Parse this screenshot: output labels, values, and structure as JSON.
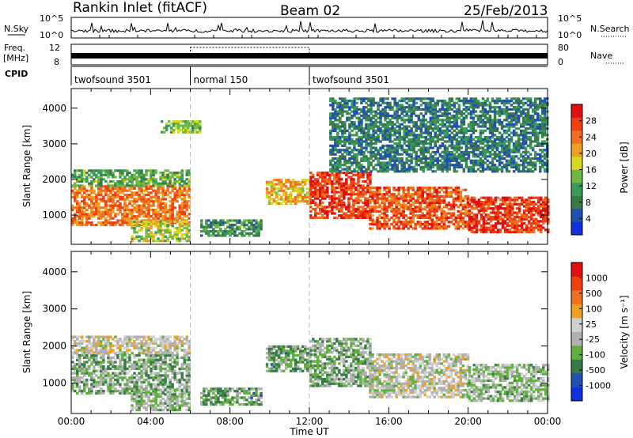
{
  "header": {
    "title": "Rankin Inlet (fitACF)",
    "beam": "Beam 02",
    "date": "25/Feb/2013"
  },
  "side_labels": {
    "nsky": "N.Sky",
    "freq_line1": "Freq.",
    "freq_line2": "[MHz]",
    "cpid": "CPID",
    "nsearch": "N.Search",
    "nave": "Nave"
  },
  "noise_axis": {
    "left_ticks": [
      "10^5",
      "10^0"
    ],
    "right_ticks": [
      "10^5",
      "10^0"
    ]
  },
  "freq_axis": {
    "left_ticks": [
      "12",
      "8"
    ],
    "right_ticks": [
      "80",
      "0"
    ]
  },
  "cpid_segments": [
    {
      "label": "twofsound 3501",
      "start_h": 0,
      "end_h": 6
    },
    {
      "label": "normal 150",
      "start_h": 6,
      "end_h": 12
    },
    {
      "label": "twofsound 3501",
      "start_h": 12,
      "end_h": 24
    }
  ],
  "colors": {
    "power_scale": [
      "#1030e0",
      "#2050b0",
      "#3a7a4a",
      "#3a9a5a",
      "#70b840",
      "#d8d820",
      "#f0a020",
      "#f07020",
      "#f04010",
      "#e01010"
    ],
    "velocity_scale": [
      "#1030e0",
      "#2050b0",
      "#3a7a4a",
      "#60b040",
      "#b0b0b0",
      "#d0d0d0",
      "#f0a020",
      "#f07020",
      "#f04010",
      "#e01010"
    ]
  },
  "chart_data": [
    {
      "type": "heatmap",
      "name": "power",
      "xlabel": "Time UT",
      "ylabel": "Slant Range [km]",
      "xlim": [
        0,
        24
      ],
      "ylim": [
        180,
        4550
      ],
      "x_ticks": [
        "00:00",
        "04:00",
        "08:00",
        "12:00",
        "16:00",
        "20:00",
        "00:00"
      ],
      "y_ticks": [
        "1000",
        "2000",
        "3000",
        "4000"
      ],
      "colorbar_label": "Power [dB]",
      "colorbar_ticks": [
        "28",
        "24",
        "20",
        "16",
        "12",
        "8",
        "4"
      ],
      "colorbar_range": [
        0,
        32
      ],
      "regions": [
        {
          "t": [
            0,
            6
          ],
          "r": [
            700,
            1800
          ],
          "value": 24
        },
        {
          "t": [
            0,
            6
          ],
          "r": [
            1800,
            2250
          ],
          "value": 12
        },
        {
          "t": [
            3,
            6
          ],
          "r": [
            250,
            800
          ],
          "value": 16
        },
        {
          "t": [
            4.5,
            6.5
          ],
          "r": [
            3300,
            3650
          ],
          "value": 14
        },
        {
          "t": [
            6.5,
            9.5
          ],
          "r": [
            400,
            850
          ],
          "value": 10
        },
        {
          "t": [
            9.8,
            12
          ],
          "r": [
            1300,
            2000
          ],
          "value": 20
        },
        {
          "t": [
            12,
            15
          ],
          "r": [
            900,
            2200
          ],
          "value": 28
        },
        {
          "t": [
            15,
            20
          ],
          "r": [
            600,
            1800
          ],
          "value": 26
        },
        {
          "t": [
            20,
            24
          ],
          "r": [
            500,
            1500
          ],
          "value": 28
        },
        {
          "t": [
            13,
            24
          ],
          "r": [
            2200,
            4300
          ],
          "value": 8
        }
      ]
    },
    {
      "type": "heatmap",
      "name": "velocity",
      "xlabel": "Time UT",
      "ylabel": "Slant Range [km]",
      "xlim": [
        0,
        24
      ],
      "ylim": [
        180,
        4550
      ],
      "x_ticks": [
        "00:00",
        "04:00",
        "08:00",
        "12:00",
        "16:00",
        "20:00",
        "00:00"
      ],
      "y_ticks": [
        "1000",
        "2000",
        "3000",
        "4000"
      ],
      "colorbar_label": "Velocity [m s⁻¹]",
      "colorbar_ticks": [
        "1000",
        "500",
        "100",
        "25",
        "-25",
        "-100",
        "-500",
        "-1000"
      ],
      "colorbar_range": [
        -1200,
        1200
      ],
      "regions": [
        {
          "t": [
            0,
            6
          ],
          "r": [
            700,
            1800
          ],
          "value": -300
        },
        {
          "t": [
            0,
            6
          ],
          "r": [
            1800,
            2250
          ],
          "value": 50
        },
        {
          "t": [
            3,
            6
          ],
          "r": [
            250,
            800
          ],
          "value": -200
        },
        {
          "t": [
            6.5,
            9.5
          ],
          "r": [
            400,
            850
          ],
          "value": -400
        },
        {
          "t": [
            9.8,
            12
          ],
          "r": [
            1300,
            2000
          ],
          "value": -400
        },
        {
          "t": [
            12,
            15
          ],
          "r": [
            900,
            2200
          ],
          "value": -300
        },
        {
          "t": [
            15,
            20
          ],
          "r": [
            600,
            1800
          ],
          "value": 0
        },
        {
          "t": [
            20,
            24
          ],
          "r": [
            500,
            1500
          ],
          "value": -200
        }
      ]
    }
  ]
}
